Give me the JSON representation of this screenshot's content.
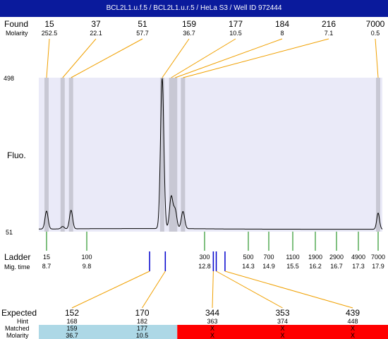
{
  "title": "BCL2L1.u.f.5 / BCL2L1.u.r.5 / HeLa S3 / Well ID 972444",
  "labels": {
    "found": "Found",
    "molarity": "Molarity",
    "fluo": "Fluo.",
    "ladder": "Ladder",
    "mig_time": "Mig. time",
    "expected": "Expected",
    "hint": "Hint",
    "matched": "Matched",
    "molarity_bottom": "Molarity"
  },
  "colors": {
    "title_bg": "#0a1a9c",
    "plot_bg": "#eaeaf8",
    "band": "#c8c8d4",
    "found_line": "#f0a000",
    "ladder_line": "#008000",
    "expected_tick": "#0000cc",
    "matched_ok": "#add8e6",
    "matched_missing": "#ff0000"
  },
  "chart_data": {
    "type": "line",
    "ylim": [
      51,
      498
    ],
    "y_ticks": [
      "498",
      "51"
    ],
    "found": [
      {
        "size": "15",
        "molarity": "252.5",
        "mig_time": 8.7
      },
      {
        "size": "37",
        "molarity": "22.1",
        "mig_time": 9.14
      },
      {
        "size": "51",
        "molarity": "57.7",
        "mig_time": 9.37
      },
      {
        "size": "159",
        "molarity": "36.7",
        "mig_time": 11.72
      },
      {
        "size": "177",
        "molarity": "10.5",
        "mig_time": 11.95
      },
      {
        "size": "184",
        "molarity": "8",
        "mig_time": 12.05
      },
      {
        "size": "216",
        "molarity": "7.1",
        "mig_time": 12.25
      },
      {
        "size": "7000",
        "molarity": "0.5",
        "mig_time": 17.9
      }
    ],
    "ladder": [
      {
        "size": "15",
        "mig_time": "8.7"
      },
      {
        "size": "100",
        "mig_time": "9.8"
      },
      {
        "size": "300",
        "mig_time": "12.8"
      },
      {
        "size": "500",
        "mig_time": "14.3"
      },
      {
        "size": "700",
        "mig_time": "14.9"
      },
      {
        "size": "1100",
        "mig_time": "15.5"
      },
      {
        "size": "1900",
        "mig_time": "16.2"
      },
      {
        "size": "2900",
        "mig_time": "16.7"
      },
      {
        "size": "4900",
        "mig_time": "17.3"
      },
      {
        "size": "7000",
        "mig_time": "17.9"
      }
    ],
    "expected": [
      {
        "expected": "152",
        "hint": "168",
        "matched": "159",
        "molarity": "36.7",
        "status": "matched",
        "mig_time": 11.4
      },
      {
        "expected": "170",
        "hint": "182",
        "matched": "177",
        "molarity": "10.5",
        "status": "matched",
        "mig_time": 11.8
      },
      {
        "expected": "344",
        "hint": "363",
        "matched": "X",
        "molarity": "X",
        "status": "missing",
        "mig_time": 13.1
      },
      {
        "expected": "353",
        "hint": "374",
        "matched": "X",
        "molarity": "X",
        "status": "missing",
        "mig_time": 13.2
      },
      {
        "expected": "439",
        "hint": "448",
        "matched": "X",
        "molarity": "X",
        "status": "missing",
        "mig_time": 13.5
      }
    ],
    "peaks": [
      {
        "mig_time": 8.7,
        "height": 110
      },
      {
        "mig_time": 9.14,
        "height": 65
      },
      {
        "mig_time": 9.37,
        "height": 112
      },
      {
        "mig_time": 11.72,
        "height": 495
      },
      {
        "mig_time": 11.95,
        "height": 150
      },
      {
        "mig_time": 12.05,
        "height": 112
      },
      {
        "mig_time": 12.25,
        "height": 108
      },
      {
        "mig_time": 17.9,
        "height": 105
      }
    ],
    "baseline": 58
  }
}
